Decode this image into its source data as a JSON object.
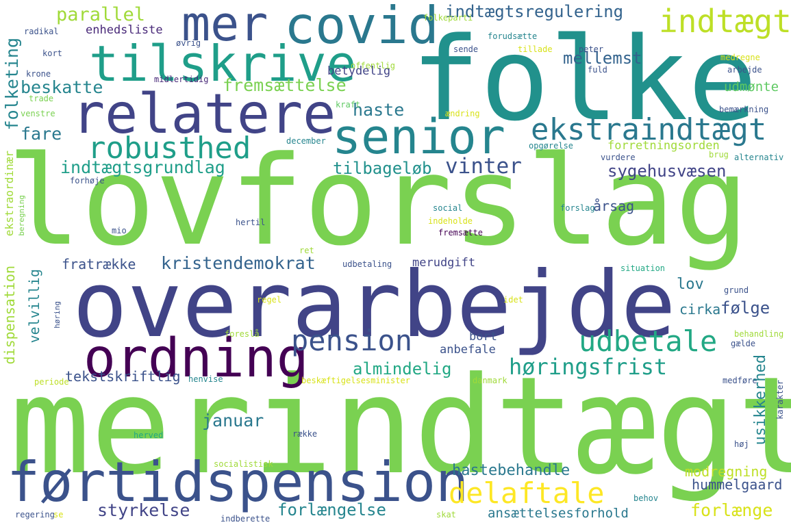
{
  "words": [
    {
      "text": "lovforslag",
      "color": "#7ad151"
    },
    {
      "text": "merindtægt",
      "color": "#7ad151"
    },
    {
      "text": "overarbejde",
      "color": "#414487"
    },
    {
      "text": "folke",
      "color": "#21918c"
    },
    {
      "text": "førtidspension",
      "color": "#3b528b"
    },
    {
      "text": "relatere",
      "color": "#414487"
    },
    {
      "text": "tilskrive",
      "color": "#1f9e89"
    },
    {
      "text": "senior",
      "color": "#25858e"
    },
    {
      "text": "covid",
      "color": "#2a788e"
    },
    {
      "text": "mer",
      "color": "#3b528b"
    },
    {
      "text": "ordning",
      "color": "#440154"
    },
    {
      "text": "ekstraindtægt",
      "color": "#2a788e"
    },
    {
      "text": "robusthed",
      "color": "#1f9e89"
    },
    {
      "text": "indtægt",
      "color": "#bddf26"
    },
    {
      "text": "delaftale",
      "color": "#fde725"
    },
    {
      "text": "udbetale",
      "color": "#22a884"
    },
    {
      "text": "pension",
      "color": "#3b528b"
    },
    {
      "text": "høringsfrist",
      "color": "#1f9e89"
    },
    {
      "text": "vinter",
      "color": "#3b528b"
    },
    {
      "text": "indtægtsregulering",
      "color": "#33638d"
    },
    {
      "text": "parallel",
      "color": "#a0da39"
    },
    {
      "text": "enhedsliste",
      "color": "#482878"
    },
    {
      "text": "beskatte",
      "color": "#25858e"
    },
    {
      "text": "fremsættelse",
      "color": "#7ad151"
    },
    {
      "text": "mellemst",
      "color": "#33638d"
    },
    {
      "text": "haste",
      "color": "#2a788e"
    },
    {
      "text": "fare",
      "color": "#2a788e"
    },
    {
      "text": "indtægtsgrundlag",
      "color": "#1f9e89"
    },
    {
      "text": "tilbageløb",
      "color": "#21918c"
    },
    {
      "text": "sygehusvæsen",
      "color": "#414487"
    },
    {
      "text": "forretningsorden",
      "color": "#a0da39"
    },
    {
      "text": "udmønte",
      "color": "#5ec962"
    },
    {
      "text": "kristendemokrat",
      "color": "#33638d"
    },
    {
      "text": "fratrække",
      "color": "#3b528b"
    },
    {
      "text": "merudgift",
      "color": "#414487"
    },
    {
      "text": "lov",
      "color": "#2a788e"
    },
    {
      "text": "følge",
      "color": "#3b528b"
    },
    {
      "text": "cirka",
      "color": "#2a788e"
    },
    {
      "text": "bort",
      "color": "#3b528b"
    },
    {
      "text": "anbefale",
      "color": "#3b528b"
    },
    {
      "text": "almindelig",
      "color": "#22a884"
    },
    {
      "text": "tekstskriftlig",
      "color": "#3b528b"
    },
    {
      "text": "januar",
      "color": "#2a788e"
    },
    {
      "text": "hastebehandle",
      "color": "#2a788e"
    },
    {
      "text": "modregning",
      "color": "#bddf26"
    },
    {
      "text": "hummelgaard",
      "color": "#3b528b"
    },
    {
      "text": "styrkelse",
      "color": "#414487"
    },
    {
      "text": "forlængelse",
      "color": "#25858e"
    },
    {
      "text": "ansættelsesforhold",
      "color": "#2a788e"
    },
    {
      "text": "forlænge",
      "color": "#d8e219"
    },
    {
      "text": "betydelig",
      "color": "#414487"
    },
    {
      "text": "midlertidig",
      "color": "#482878"
    },
    {
      "text": "offentlig",
      "color": "#a0da39"
    },
    {
      "text": "kraft",
      "color": "#5ec962"
    },
    {
      "text": "ændring",
      "color": "#d8e219"
    },
    {
      "text": "december",
      "color": "#25858e"
    },
    {
      "text": "radikal",
      "color": "#3b528b"
    },
    {
      "text": "kort",
      "color": "#3b528b"
    },
    {
      "text": "krone",
      "color": "#3b528b"
    },
    {
      "text": "trade",
      "color": "#7ad151"
    },
    {
      "text": "venstre",
      "color": "#7ad151"
    },
    {
      "text": "øvrig",
      "color": "#3b528b"
    },
    {
      "text": "folkeparti",
      "color": "#a0da39"
    },
    {
      "text": "sende",
      "color": "#3b528b"
    },
    {
      "text": "forudsætte",
      "color": "#25858e"
    },
    {
      "text": "tillade",
      "color": "#d8e219"
    },
    {
      "text": "peter",
      "color": "#3b528b"
    },
    {
      "text": "medregne",
      "color": "#d8e219"
    },
    {
      "text": "arbejde",
      "color": "#3b528b"
    },
    {
      "text": "fuld",
      "color": "#3b528b"
    },
    {
      "text": "bemærkning",
      "color": "#3b528b"
    },
    {
      "text": "opgørelse",
      "color": "#25858e"
    },
    {
      "text": "vurdere",
      "color": "#3b528b"
    },
    {
      "text": "brug",
      "color": "#a0da39"
    },
    {
      "text": "alternativ",
      "color": "#25858e"
    },
    {
      "text": "forhøje",
      "color": "#3b528b"
    },
    {
      "text": "social",
      "color": "#25858e"
    },
    {
      "text": "indeholde",
      "color": "#d8e219"
    },
    {
      "text": "fremsætte",
      "color": "#440154"
    },
    {
      "text": "forslag",
      "color": "#25858e"
    },
    {
      "text": "årsag",
      "color": "#3b528b"
    },
    {
      "text": "hertil",
      "color": "#3b528b"
    },
    {
      "text": "mio",
      "color": "#3b528b"
    },
    {
      "text": "ret",
      "color": "#a0da39"
    },
    {
      "text": "udbetaling",
      "color": "#3b528b"
    },
    {
      "text": "situation",
      "color": "#22a884"
    },
    {
      "text": "grund",
      "color": "#3b528b"
    },
    {
      "text": "regel",
      "color": "#d8e219"
    },
    {
      "text": "idet",
      "color": "#d8e219"
    },
    {
      "text": "foreslå",
      "color": "#a0da39"
    },
    {
      "text": "behandling",
      "color": "#a0da39"
    },
    {
      "text": "gælde",
      "color": "#3b528b"
    },
    {
      "text": "danmark",
      "color": "#a0da39"
    },
    {
      "text": "medføre",
      "color": "#3b528b"
    },
    {
      "text": "periode",
      "color": "#bddf26"
    },
    {
      "text": "henvise",
      "color": "#25858e"
    },
    {
      "text": "beskæftigelsesminister",
      "color": "#d8e219"
    },
    {
      "text": "række",
      "color": "#3b528b"
    },
    {
      "text": "herved",
      "color": "#22a884"
    },
    {
      "text": "høj",
      "color": "#3b528b"
    },
    {
      "text": "socialistisk",
      "color": "#a0da39"
    },
    {
      "text": "behov",
      "color": "#25858e"
    },
    {
      "text": "regering",
      "color": "#3b528b"
    },
    {
      "text": "se",
      "color": "#d8e219"
    },
    {
      "text": "indberette",
      "color": "#3b528b"
    },
    {
      "text": "skat",
      "color": "#a0da39"
    },
    {
      "text": "folketing",
      "color": "#25858e"
    },
    {
      "text": "ekstraordinær",
      "color": "#a0da39"
    },
    {
      "text": "beregning",
      "color": "#7ad151"
    },
    {
      "text": "dispensation",
      "color": "#a0da39"
    },
    {
      "text": "velvillig",
      "color": "#25858e"
    },
    {
      "text": "høring",
      "color": "#3b528b"
    },
    {
      "text": "usikkerhed",
      "color": "#25858e"
    },
    {
      "text": "karakter",
      "color": "#3b528b"
    }
  ]
}
